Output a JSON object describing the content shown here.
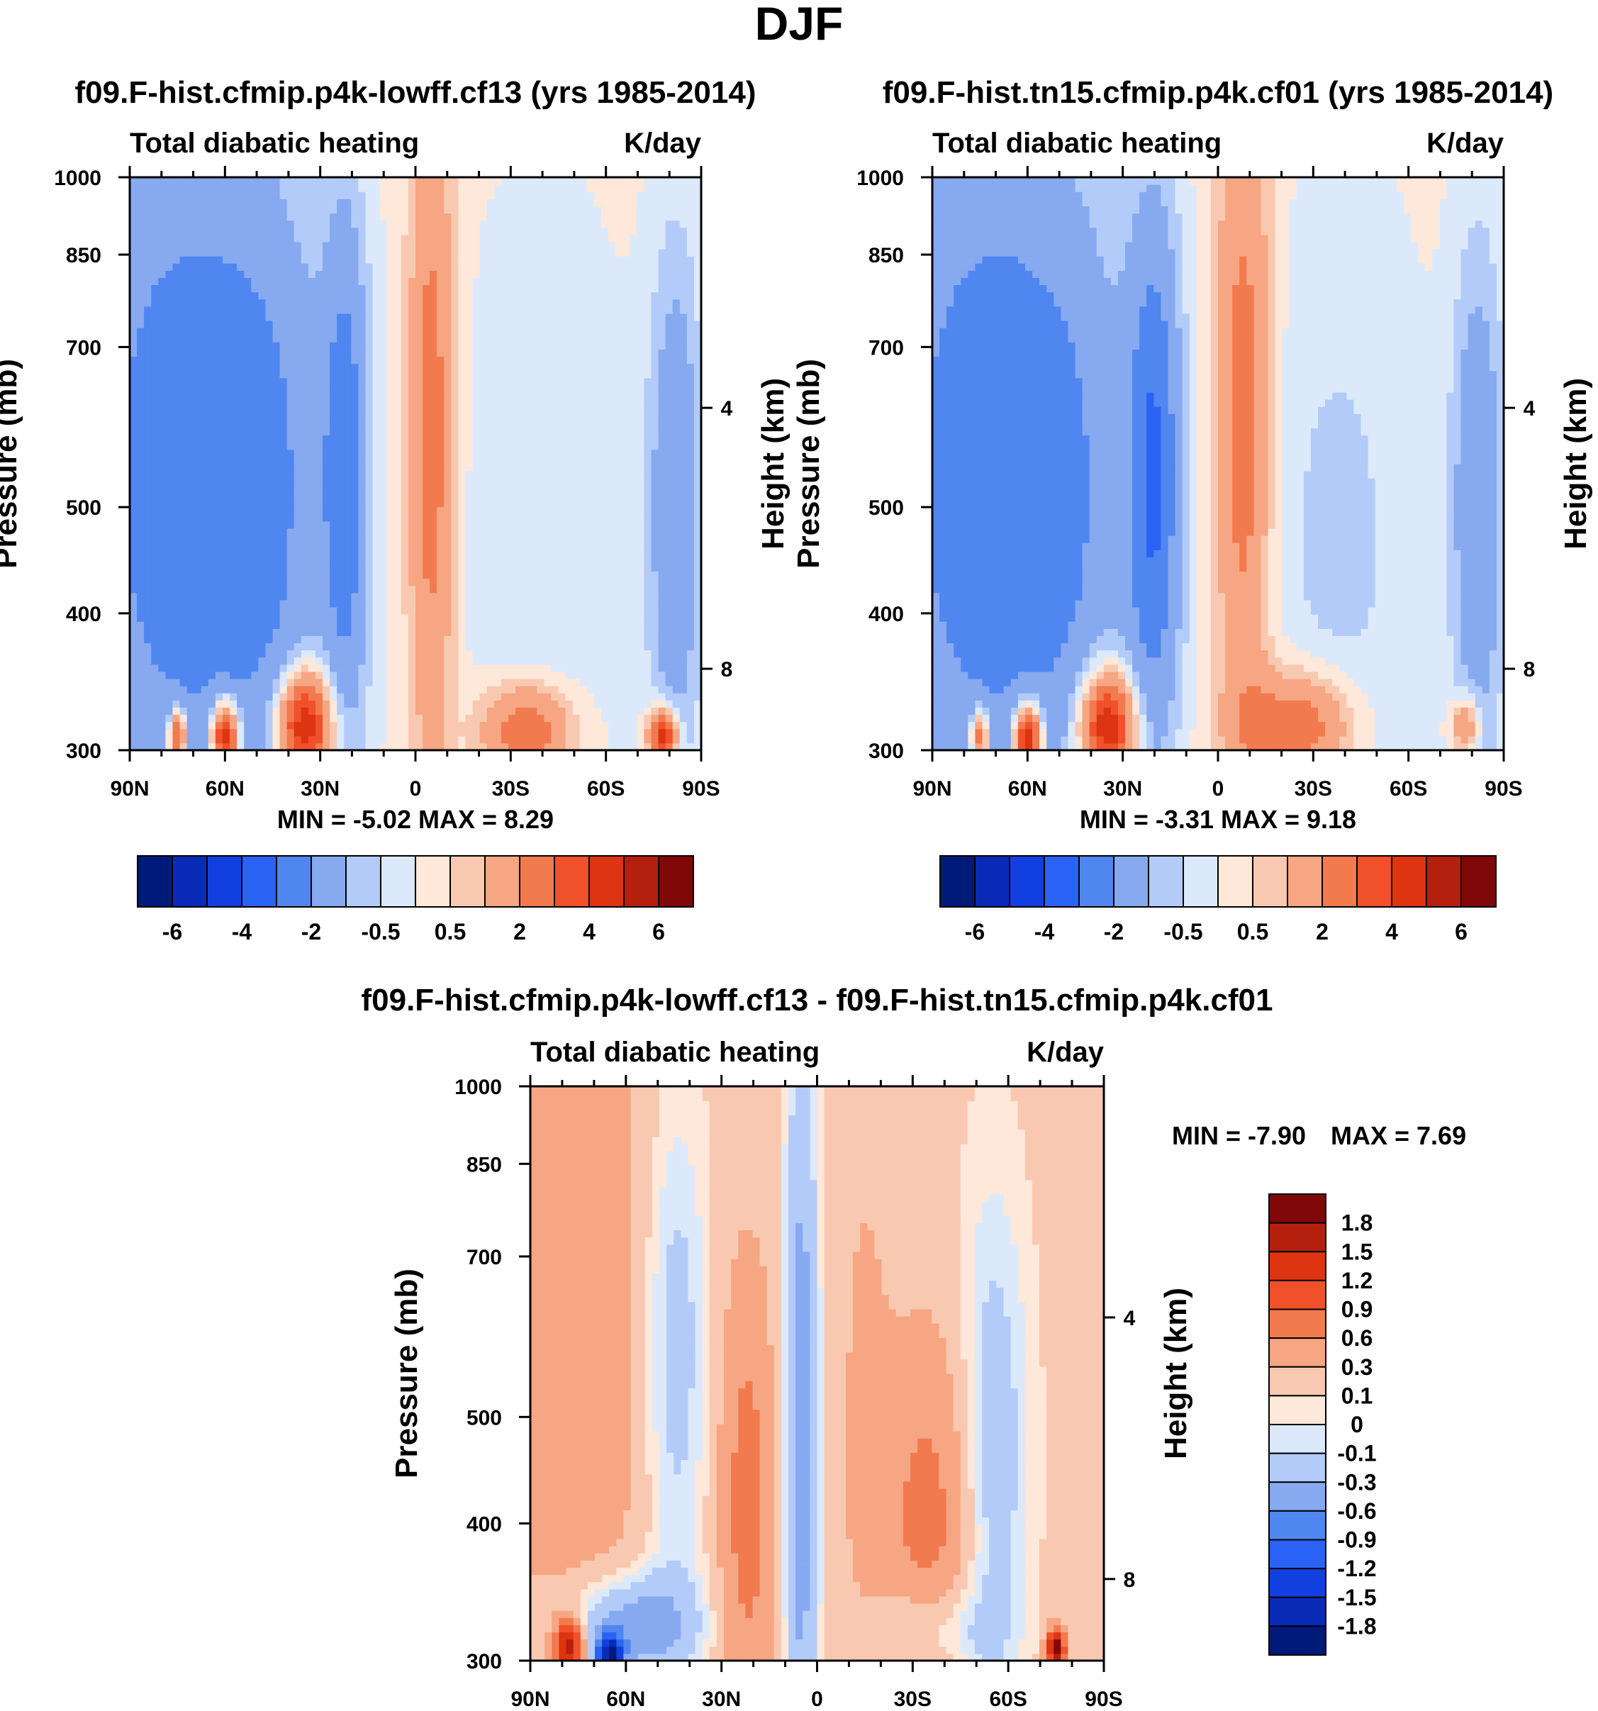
{
  "page": {
    "title": "DJF"
  },
  "colors": {
    "absolute_levels_fill": [
      "#001a7a",
      "#0a2ab8",
      "#1240e0",
      "#2a62f5",
      "#4f86f0",
      "#86a9f0",
      "#b3cbf8",
      "#dbe9fb",
      "#fde8da",
      "#f8c9b0",
      "#f6a682",
      "#f27a4f",
      "#f0512a",
      "#dd3412",
      "#b5200e",
      "#800808"
    ],
    "difference_levels_fill": [
      "#001a7a",
      "#0a2ab8",
      "#1240e0",
      "#2a62f5",
      "#4f86f0",
      "#86a9f0",
      "#b3cbf8",
      "#dbe9fb",
      "#fde8da",
      "#f8c9b0",
      "#f6a682",
      "#f27a4f",
      "#f0512a",
      "#dd3412",
      "#b5200e",
      "#800808"
    ]
  },
  "chart_data": [
    {
      "type": "heatmap",
      "title": "f09.F-hist.cfmip.p4k-lowff.cf13 (yrs 1985-2014)",
      "left_string": "Total diabatic heating",
      "right_string": "K/day",
      "xlabel": "",
      "ylabel": "Pressure (mb)",
      "ylabel_right": "Height (km)",
      "x_ticks": [
        "90N",
        "60N",
        "30N",
        "0",
        "30S",
        "60S",
        "90S"
      ],
      "x_range": [
        90,
        -90
      ],
      "y_ticks": [
        "300",
        "400",
        "500",
        "700",
        "850",
        "1000"
      ],
      "y_range": [
        1000,
        300
      ],
      "y_scale": "log",
      "y_right_ticks": [
        "8",
        "4"
      ],
      "stats": "MIN =  -5.02  MAX =   8.29",
      "colorbar_labels": [
        "-6",
        "-4",
        "-2",
        "-0.5",
        "0.5",
        "2",
        "4",
        "6"
      ],
      "colorbar_orientation": "horizontal",
      "features": [
        {
          "lat": 72,
          "p": 560,
          "value": -3.0,
          "wlat": 25,
          "wp": 0.55
        },
        {
          "lat": 45,
          "p": 600,
          "value": -1.0,
          "wlat": 12,
          "wp": 0.45
        },
        {
          "lat": 22,
          "p": 560,
          "value": -2.5,
          "wlat": 5,
          "wp": 0.4
        },
        {
          "lat": -5,
          "p": 520,
          "value": 2.5,
          "wlat": 5,
          "wp": 0.5
        },
        {
          "lat": -40,
          "p": 650,
          "value": -0.6,
          "wlat": 20,
          "wp": 0.5
        },
        {
          "lat": -82,
          "p": 600,
          "value": -2.0,
          "wlat": 6,
          "wp": 0.4
        },
        {
          "lat": 35,
          "p": 950,
          "value": 5.5,
          "wlat": 6,
          "wp": 0.08
        },
        {
          "lat": 60,
          "p": 970,
          "value": 6.0,
          "wlat": 3,
          "wp": 0.05
        },
        {
          "lat": 75,
          "p": 970,
          "value": 4.5,
          "wlat": 2,
          "wp": 0.04
        },
        {
          "lat": -35,
          "p": 960,
          "value": 3.0,
          "wlat": 10,
          "wp": 0.07
        },
        {
          "lat": -78,
          "p": 970,
          "value": 5.0,
          "wlat": 3,
          "wp": 0.04
        }
      ]
    },
    {
      "type": "heatmap",
      "title": "f09.F-hist.tn15.cfmip.p4k.cf01 (yrs 1985-2014)",
      "left_string": "Total diabatic heating",
      "right_string": "K/day",
      "xlabel": "",
      "ylabel": "Pressure (mb)",
      "ylabel_right": "Height (km)",
      "x_ticks": [
        "90N",
        "60N",
        "30N",
        "0",
        "30S",
        "60S",
        "90S"
      ],
      "x_range": [
        90,
        -90
      ],
      "y_ticks": [
        "300",
        "400",
        "500",
        "700",
        "850",
        "1000"
      ],
      "y_range": [
        1000,
        300
      ],
      "y_scale": "log",
      "y_right_ticks": [
        "8",
        "4"
      ],
      "stats": "MIN =  -3.31  MAX =   9.18",
      "colorbar_labels": [
        "-6",
        "-4",
        "-2",
        "-0.5",
        "0.5",
        "2",
        "4",
        "6"
      ],
      "colorbar_orientation": "horizontal",
      "features": [
        {
          "lat": 72,
          "p": 560,
          "value": -3.0,
          "wlat": 25,
          "wp": 0.55
        },
        {
          "lat": 45,
          "p": 600,
          "value": -0.8,
          "wlat": 12,
          "wp": 0.45
        },
        {
          "lat": 20,
          "p": 560,
          "value": -3.0,
          "wlat": 6,
          "wp": 0.4
        },
        {
          "lat": -8,
          "p": 500,
          "value": 2.5,
          "wlat": 6,
          "wp": 0.5
        },
        {
          "lat": -38,
          "p": 650,
          "value": -0.8,
          "wlat": 18,
          "wp": 0.5
        },
        {
          "lat": -82,
          "p": 600,
          "value": -2.0,
          "wlat": 6,
          "wp": 0.4
        },
        {
          "lat": 35,
          "p": 950,
          "value": 5.5,
          "wlat": 6,
          "wp": 0.08
        },
        {
          "lat": 60,
          "p": 975,
          "value": 6.5,
          "wlat": 3,
          "wp": 0.05
        },
        {
          "lat": 75,
          "p": 970,
          "value": 4.0,
          "wlat": 2,
          "wp": 0.04
        },
        {
          "lat": -25,
          "p": 950,
          "value": 3.0,
          "wlat": 12,
          "wp": 0.08
        },
        {
          "lat": -78,
          "p": 950,
          "value": 2.5,
          "wlat": 3,
          "wp": 0.04
        }
      ]
    },
    {
      "type": "heatmap",
      "title": "f09.F-hist.cfmip.p4k-lowff.cf13 - f09.F-hist.tn15.cfmip.p4k.cf01",
      "left_string": "Total diabatic heating",
      "right_string": "K/day",
      "xlabel": "",
      "ylabel": "Pressure (mb)",
      "ylabel_right": "Height (km)",
      "x_ticks": [
        "90N",
        "60N",
        "30N",
        "0",
        "30S",
        "60S",
        "90S"
      ],
      "x_range": [
        90,
        -90
      ],
      "y_ticks": [
        "300",
        "400",
        "500",
        "700",
        "850",
        "1000"
      ],
      "y_range": [
        1000,
        300
      ],
      "y_scale": "log",
      "y_right_ticks": [
        "8",
        "4"
      ],
      "stats_min": "MIN =  -7.90",
      "stats_max": "MAX =    7.69",
      "colorbar_labels": [
        "1.8",
        "1.5",
        "1.2",
        "0.9",
        "0.6",
        "0.3",
        "0.1",
        "0",
        "-0.1",
        "-0.3",
        "-0.6",
        "-0.9",
        "-1.2",
        "-1.5",
        "-1.8"
      ],
      "colorbar_orientation": "vertical",
      "features": [
        {
          "lat": 75,
          "p": 500,
          "value": 0.35,
          "wlat": 18,
          "wp": 0.7
        },
        {
          "lat": 45,
          "p": 520,
          "value": -0.4,
          "wlat": 8,
          "wp": 0.4
        },
        {
          "lat": 22,
          "p": 720,
          "value": 0.6,
          "wlat": 6,
          "wp": 0.35
        },
        {
          "lat": 5,
          "p": 620,
          "value": -0.6,
          "wlat": 4,
          "wp": 0.6
        },
        {
          "lat": -15,
          "p": 600,
          "value": 0.2,
          "wlat": 6,
          "wp": 0.5
        },
        {
          "lat": -35,
          "p": 780,
          "value": 0.6,
          "wlat": 10,
          "wp": 0.3
        },
        {
          "lat": -55,
          "p": 650,
          "value": -0.4,
          "wlat": 8,
          "wp": 0.4
        },
        {
          "lat": 60,
          "p": 930,
          "value": -0.7,
          "wlat": 15,
          "wp": 0.08
        },
        {
          "lat": -35,
          "p": 940,
          "value": -0.5,
          "wlat": 12,
          "wp": 0.08
        },
        {
          "lat": 78,
          "p": 970,
          "value": 1.6,
          "wlat": 3,
          "wp": 0.04
        },
        {
          "lat": 65,
          "p": 985,
          "value": -1.8,
          "wlat": 3,
          "wp": 0.03
        },
        {
          "lat": -75,
          "p": 975,
          "value": 1.9,
          "wlat": 2,
          "wp": 0.03
        }
      ]
    }
  ]
}
